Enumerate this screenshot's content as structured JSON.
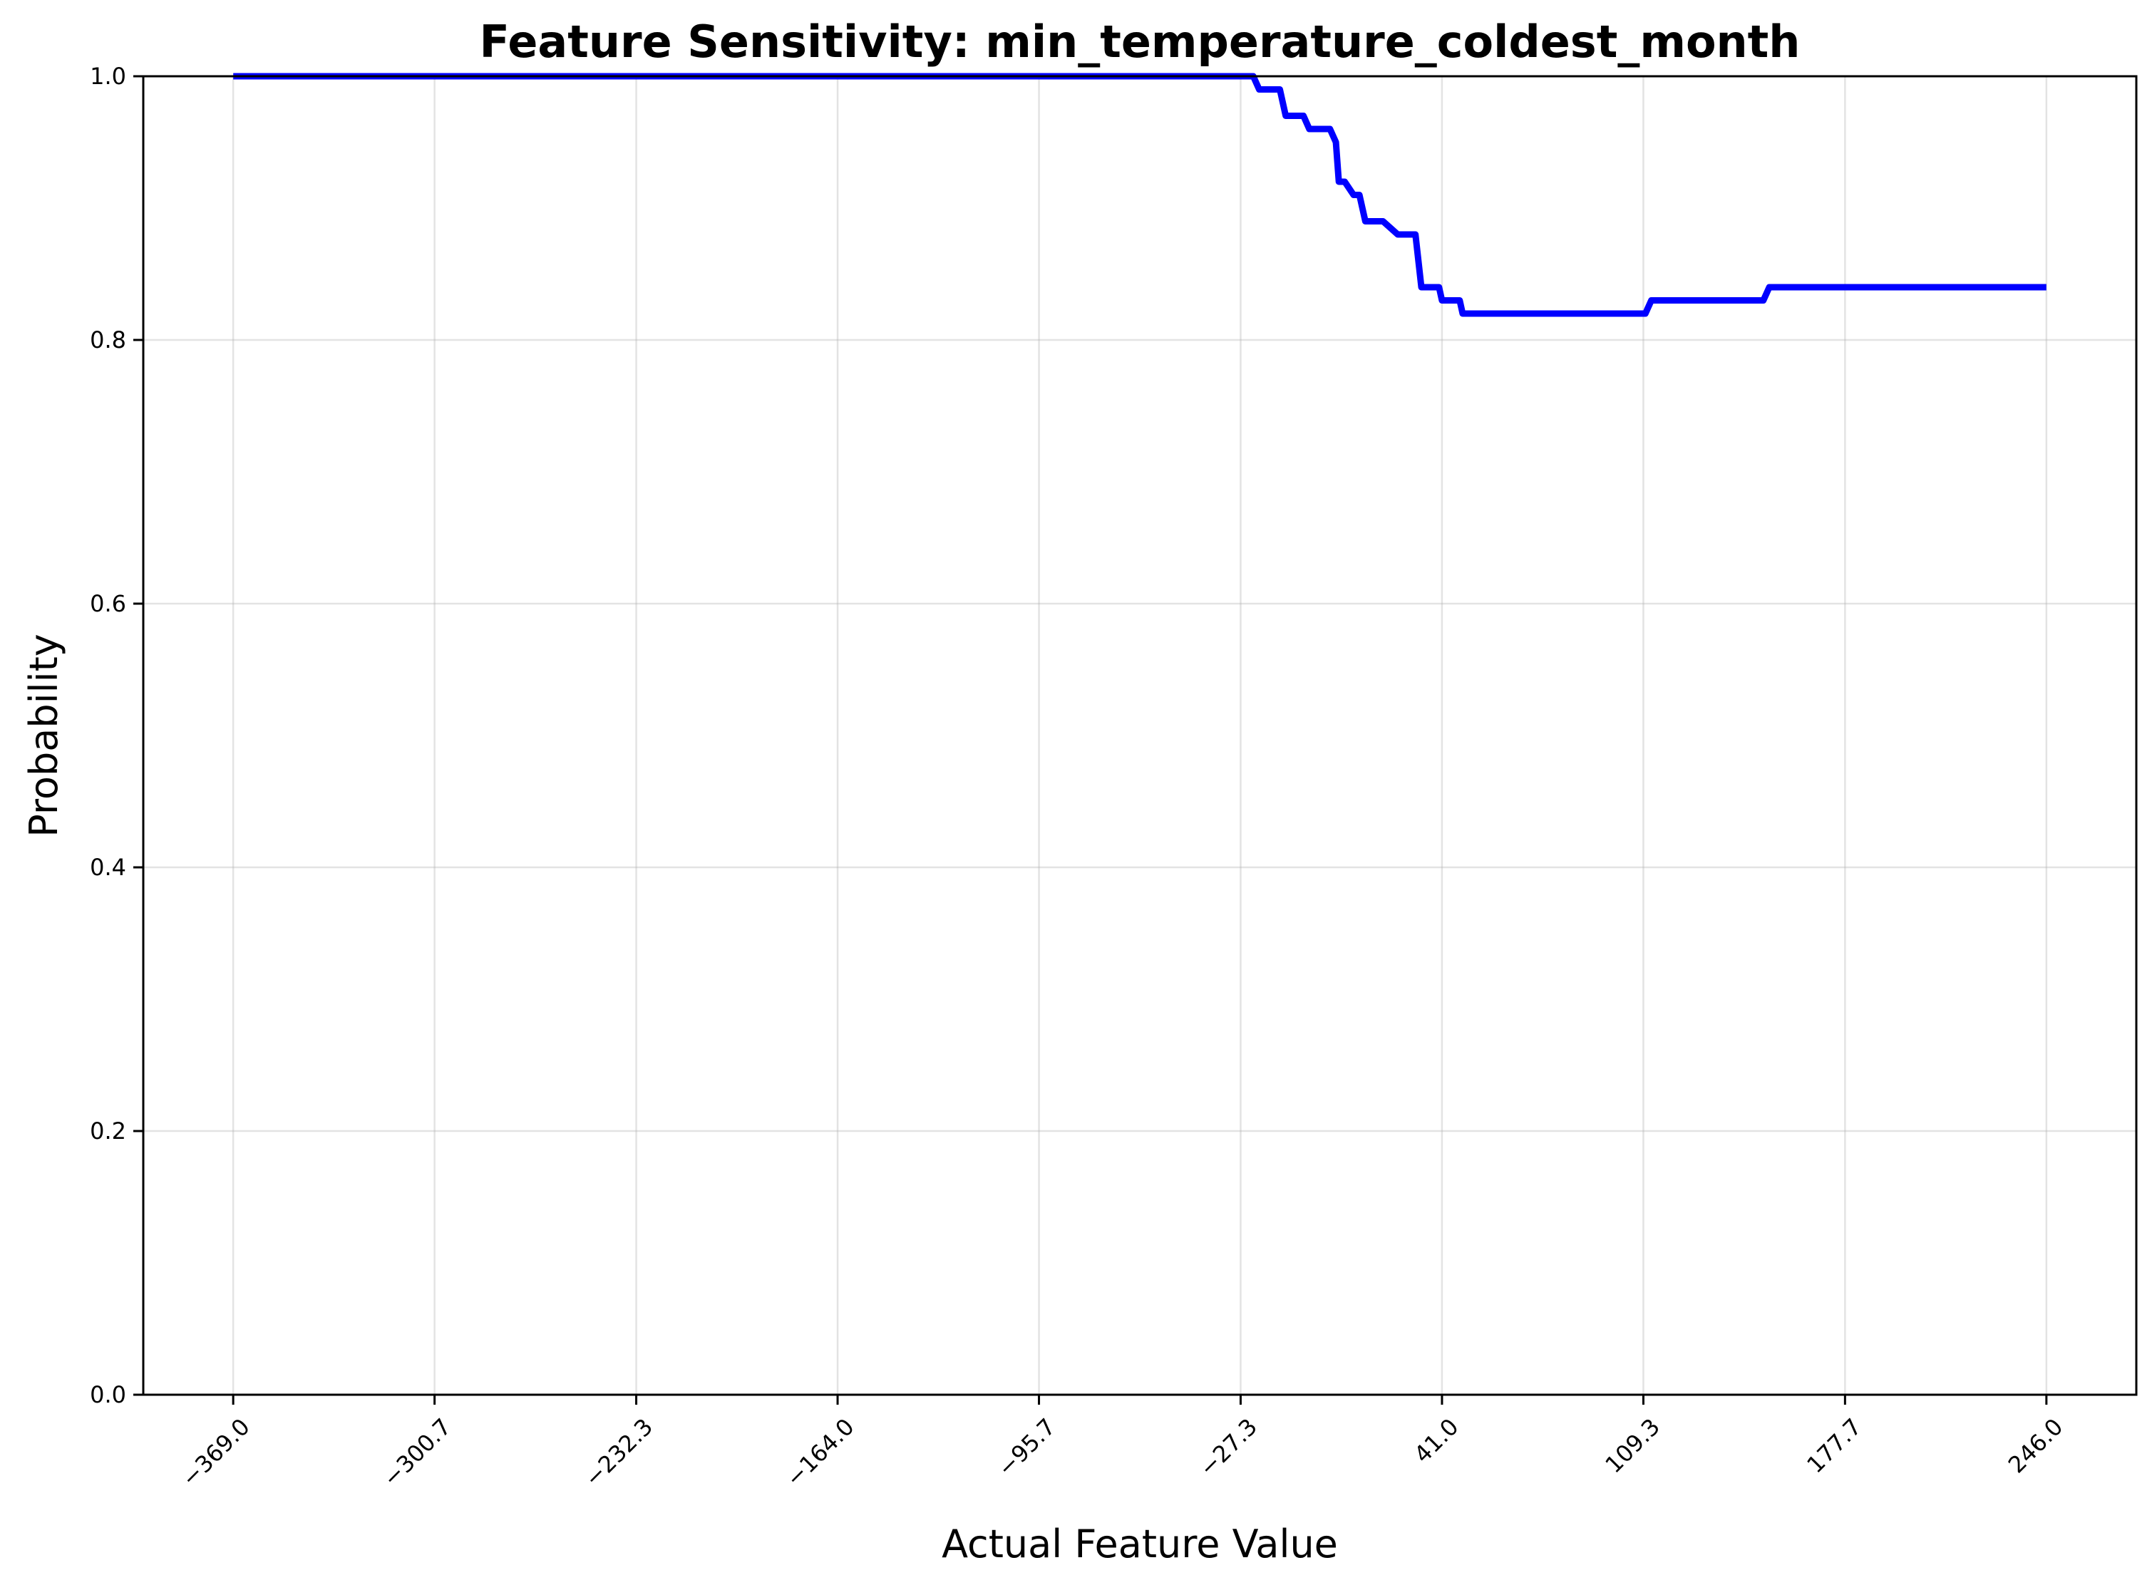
{
  "chart_data": {
    "type": "line",
    "title": "Feature Sensitivity: min_temperature_coldest_month",
    "xlabel": "Actual Feature Value",
    "ylabel": "Probability",
    "xlim": [
      -399.5,
      276.5
    ],
    "ylim": [
      0,
      1
    ],
    "xticks": [
      -369.0,
      -300.7,
      -232.3,
      -164.0,
      -95.7,
      -27.3,
      41.0,
      109.3,
      177.7,
      246.0
    ],
    "xtick_labels": [
      "−369.0",
      "−300.7",
      "−232.3",
      "−164.0",
      "−95.7",
      "−27.3",
      "41.0",
      "109.3",
      "177.7",
      "246.0"
    ],
    "yticks": [
      0.0,
      0.2,
      0.4,
      0.6,
      0.8,
      1.0
    ],
    "ytick_labels": [
      "0.0",
      "0.2",
      "0.4",
      "0.6",
      "0.8",
      "1.0"
    ],
    "grid": true,
    "line_color": "#0000ff",
    "series": [
      {
        "x": [
          -369,
          -23,
          -21,
          -14,
          -12,
          -6,
          -4,
          3,
          5,
          6,
          8,
          11,
          13,
          15,
          17,
          18,
          21,
          26,
          27,
          32,
          34,
          35,
          40,
          41,
          47,
          48,
          50,
          110,
          112,
          150,
          152,
          246
        ],
        "y": [
          1.0,
          1.0,
          0.99,
          0.99,
          0.97,
          0.97,
          0.96,
          0.96,
          0.95,
          0.92,
          0.92,
          0.91,
          0.91,
          0.89,
          0.89,
          0.89,
          0.89,
          0.88,
          0.88,
          0.88,
          0.84,
          0.84,
          0.84,
          0.83,
          0.83,
          0.82,
          0.82,
          0.82,
          0.83,
          0.83,
          0.84,
          0.84
        ]
      }
    ]
  }
}
